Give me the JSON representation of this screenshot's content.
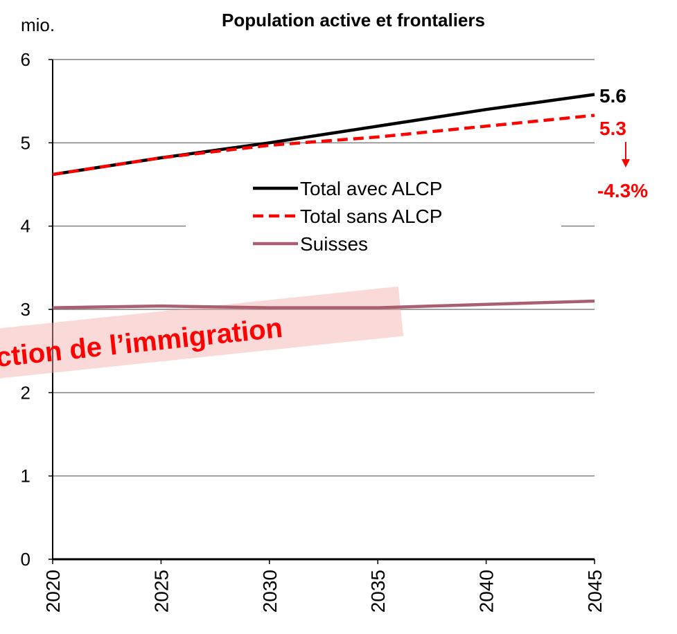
{
  "chart_data": {
    "type": "line",
    "title": "Population active et frontaliers",
    "y_unit_label": "mio.",
    "x": [
      2020,
      2025,
      2030,
      2035,
      2040,
      2045
    ],
    "xlim": [
      2020,
      2045
    ],
    "xticks": [
      2020,
      2025,
      2030,
      2035,
      2040,
      2045
    ],
    "ylim": [
      0,
      6
    ],
    "yticks": [
      0,
      1,
      2,
      3,
      4,
      5,
      6
    ],
    "grid": true,
    "legend": "center",
    "series": [
      {
        "name": "Total avec ALCP",
        "color": "#000000",
        "dash": false,
        "values": [
          4.62,
          4.82,
          5.0,
          5.2,
          5.4,
          5.58
        ]
      },
      {
        "name": "Total sans ALCP",
        "color": "#ff0000",
        "dash": true,
        "values": [
          4.62,
          4.82,
          4.97,
          5.07,
          5.2,
          5.33
        ]
      },
      {
        "name": "Suisses",
        "color": "#a86070",
        "dash": false,
        "values": [
          3.02,
          3.04,
          3.02,
          3.02,
          3.06,
          3.1
        ]
      }
    ],
    "annotations": [
      {
        "text": "5.6",
        "color": "#000000"
      },
      {
        "text": "5.3",
        "color": "#ff0000"
      },
      {
        "text": "-4.3%",
        "color": "#ff0000"
      }
    ],
    "banner": "ction de l’immigration"
  }
}
